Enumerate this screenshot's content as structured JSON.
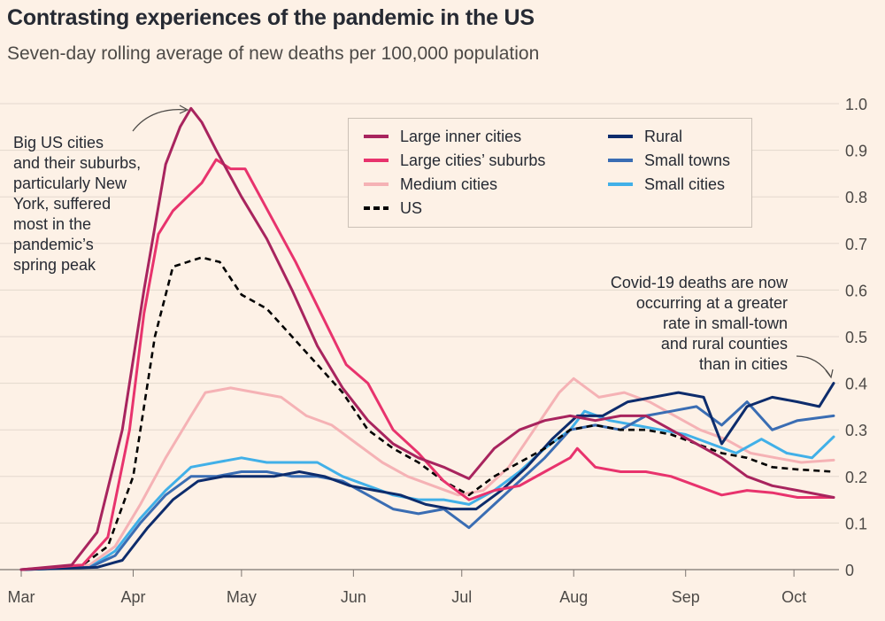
{
  "header": {
    "title": "Contrasting experiences of the pandemic in the US",
    "subtitle": "Seven-day rolling average of new deaths per 100,000 population"
  },
  "annotations": {
    "left": [
      "Big US cities",
      "and their suburbs,",
      "particularly New",
      "York, suffered",
      "most in the",
      "pandemic’s",
      "spring peak"
    ],
    "right": [
      "Covid-19 deaths are now",
      "occurring at a greater",
      "rate in small-town",
      "and rural counties",
      "than in cities"
    ]
  },
  "colors": {
    "background": "#fdf1e6",
    "grid": "#e3d8cd",
    "Large inner cities": "#a8245e",
    "Large cities’ suburbs": "#e8336d",
    "Medium cities": "#f5b2b5",
    "US": "#000000",
    "Rural": "#0d2c6c",
    "Small towns": "#3a6db3",
    "Small cities": "#41b0e8"
  },
  "chart_data": {
    "type": "line",
    "xlabel": "",
    "ylabel": "",
    "xlim": [
      "2020-03-01",
      "2020-10-12"
    ],
    "ylim": [
      0,
      1.0
    ],
    "x_ticks": [
      "Mar",
      "Apr",
      "May",
      "Jun",
      "Jul",
      "Aug",
      "Sep",
      "Oct"
    ],
    "y_ticks": [
      "0",
      "0.1",
      "0.2",
      "0.3",
      "0.4",
      "0.5",
      "0.6",
      "0.7",
      "0.8",
      "0.9",
      "1.0"
    ],
    "y_axis_side": "right",
    "grid": true,
    "legend_placement": "top-center",
    "series": [
      {
        "name": "Large inner cities",
        "style": "solid",
        "points": [
          [
            "2020-03-01",
            0
          ],
          [
            "2020-03-15",
            0.01
          ],
          [
            "2020-03-22",
            0.08
          ],
          [
            "2020-03-29",
            0.3
          ],
          [
            "2020-04-04",
            0.6
          ],
          [
            "2020-04-10",
            0.87
          ],
          [
            "2020-04-14",
            0.95
          ],
          [
            "2020-04-17",
            0.99
          ],
          [
            "2020-04-20",
            0.96
          ],
          [
            "2020-04-24",
            0.9
          ],
          [
            "2020-05-01",
            0.8
          ],
          [
            "2020-05-08",
            0.71
          ],
          [
            "2020-05-15",
            0.6
          ],
          [
            "2020-05-22",
            0.48
          ],
          [
            "2020-05-29",
            0.39
          ],
          [
            "2020-06-05",
            0.32
          ],
          [
            "2020-06-12",
            0.27
          ],
          [
            "2020-06-19",
            0.24
          ],
          [
            "2020-06-26",
            0.22
          ],
          [
            "2020-07-03",
            0.195
          ],
          [
            "2020-07-10",
            0.26
          ],
          [
            "2020-07-17",
            0.3
          ],
          [
            "2020-07-24",
            0.32
          ],
          [
            "2020-07-31",
            0.33
          ],
          [
            "2020-08-07",
            0.32
          ],
          [
            "2020-08-14",
            0.33
          ],
          [
            "2020-08-21",
            0.33
          ],
          [
            "2020-08-28",
            0.3
          ],
          [
            "2020-09-04",
            0.27
          ],
          [
            "2020-09-11",
            0.24
          ],
          [
            "2020-09-18",
            0.2
          ],
          [
            "2020-09-25",
            0.18
          ],
          [
            "2020-10-02",
            0.17
          ],
          [
            "2020-10-12",
            0.155
          ]
        ]
      },
      {
        "name": "Large cities’ suburbs",
        "style": "solid",
        "points": [
          [
            "2020-03-01",
            0
          ],
          [
            "2020-03-18",
            0.01
          ],
          [
            "2020-03-25",
            0.07
          ],
          [
            "2020-03-31",
            0.3
          ],
          [
            "2020-04-04",
            0.55
          ],
          [
            "2020-04-08",
            0.72
          ],
          [
            "2020-04-12",
            0.77
          ],
          [
            "2020-04-16",
            0.8
          ],
          [
            "2020-04-20",
            0.83
          ],
          [
            "2020-04-24",
            0.88
          ],
          [
            "2020-04-28",
            0.86
          ],
          [
            "2020-05-02",
            0.86
          ],
          [
            "2020-05-09",
            0.76
          ],
          [
            "2020-05-16",
            0.66
          ],
          [
            "2020-05-23",
            0.55
          ],
          [
            "2020-05-30",
            0.44
          ],
          [
            "2020-06-05",
            0.4
          ],
          [
            "2020-06-12",
            0.3
          ],
          [
            "2020-06-19",
            0.25
          ],
          [
            "2020-06-26",
            0.19
          ],
          [
            "2020-07-03",
            0.15
          ],
          [
            "2020-07-10",
            0.17
          ],
          [
            "2020-07-17",
            0.18
          ],
          [
            "2020-07-24",
            0.21
          ],
          [
            "2020-07-31",
            0.24
          ],
          [
            "2020-08-02",
            0.26
          ],
          [
            "2020-08-07",
            0.22
          ],
          [
            "2020-08-14",
            0.21
          ],
          [
            "2020-08-21",
            0.21
          ],
          [
            "2020-08-28",
            0.2
          ],
          [
            "2020-09-04",
            0.18
          ],
          [
            "2020-09-11",
            0.16
          ],
          [
            "2020-09-18",
            0.17
          ],
          [
            "2020-09-25",
            0.165
          ],
          [
            "2020-10-02",
            0.155
          ],
          [
            "2020-10-12",
            0.155
          ]
        ]
      },
      {
        "name": "Medium cities",
        "style": "solid",
        "points": [
          [
            "2020-03-01",
            0
          ],
          [
            "2020-03-20",
            0.01
          ],
          [
            "2020-03-27",
            0.05
          ],
          [
            "2020-04-03",
            0.14
          ],
          [
            "2020-04-10",
            0.24
          ],
          [
            "2020-04-17",
            0.33
          ],
          [
            "2020-04-21",
            0.38
          ],
          [
            "2020-04-28",
            0.39
          ],
          [
            "2020-05-05",
            0.38
          ],
          [
            "2020-05-12",
            0.37
          ],
          [
            "2020-05-19",
            0.33
          ],
          [
            "2020-05-26",
            0.31
          ],
          [
            "2020-06-02",
            0.27
          ],
          [
            "2020-06-09",
            0.23
          ],
          [
            "2020-06-16",
            0.2
          ],
          [
            "2020-06-23",
            0.18
          ],
          [
            "2020-06-30",
            0.16
          ],
          [
            "2020-07-07",
            0.17
          ],
          [
            "2020-07-14",
            0.22
          ],
          [
            "2020-07-21",
            0.3
          ],
          [
            "2020-07-28",
            0.38
          ],
          [
            "2020-08-01",
            0.41
          ],
          [
            "2020-08-08",
            0.37
          ],
          [
            "2020-08-15",
            0.38
          ],
          [
            "2020-08-22",
            0.36
          ],
          [
            "2020-08-29",
            0.33
          ],
          [
            "2020-09-05",
            0.3
          ],
          [
            "2020-09-12",
            0.28
          ],
          [
            "2020-09-19",
            0.25
          ],
          [
            "2020-09-26",
            0.24
          ],
          [
            "2020-10-03",
            0.23
          ],
          [
            "2020-10-12",
            0.235
          ]
        ]
      },
      {
        "name": "US",
        "style": "dashed",
        "points": [
          [
            "2020-03-01",
            0
          ],
          [
            "2020-03-18",
            0.01
          ],
          [
            "2020-03-25",
            0.05
          ],
          [
            "2020-04-01",
            0.2
          ],
          [
            "2020-04-07",
            0.5
          ],
          [
            "2020-04-12",
            0.65
          ],
          [
            "2020-04-16",
            0.66
          ],
          [
            "2020-04-20",
            0.67
          ],
          [
            "2020-04-25",
            0.66
          ],
          [
            "2020-05-01",
            0.59
          ],
          [
            "2020-05-08",
            0.56
          ],
          [
            "2020-05-15",
            0.5
          ],
          [
            "2020-05-22",
            0.44
          ],
          [
            "2020-05-29",
            0.38
          ],
          [
            "2020-06-05",
            0.3
          ],
          [
            "2020-06-12",
            0.26
          ],
          [
            "2020-06-19",
            0.23
          ],
          [
            "2020-06-26",
            0.19
          ],
          [
            "2020-07-03",
            0.16
          ],
          [
            "2020-07-10",
            0.2
          ],
          [
            "2020-07-17",
            0.23
          ],
          [
            "2020-07-24",
            0.26
          ],
          [
            "2020-07-31",
            0.3
          ],
          [
            "2020-08-07",
            0.31
          ],
          [
            "2020-08-14",
            0.3
          ],
          [
            "2020-08-21",
            0.3
          ],
          [
            "2020-08-28",
            0.29
          ],
          [
            "2020-09-04",
            0.27
          ],
          [
            "2020-09-11",
            0.25
          ],
          [
            "2020-09-18",
            0.24
          ],
          [
            "2020-09-25",
            0.22
          ],
          [
            "2020-10-02",
            0.215
          ],
          [
            "2020-10-12",
            0.21
          ]
        ]
      },
      {
        "name": "Rural",
        "style": "solid",
        "points": [
          [
            "2020-03-01",
            0
          ],
          [
            "2020-03-22",
            0.005
          ],
          [
            "2020-03-29",
            0.02
          ],
          [
            "2020-04-05",
            0.09
          ],
          [
            "2020-04-12",
            0.15
          ],
          [
            "2020-04-19",
            0.19
          ],
          [
            "2020-04-26",
            0.2
          ],
          [
            "2020-05-03",
            0.2
          ],
          [
            "2020-05-10",
            0.2
          ],
          [
            "2020-05-17",
            0.21
          ],
          [
            "2020-05-24",
            0.2
          ],
          [
            "2020-05-31",
            0.18
          ],
          [
            "2020-06-07",
            0.17
          ],
          [
            "2020-06-14",
            0.16
          ],
          [
            "2020-06-21",
            0.14
          ],
          [
            "2020-06-28",
            0.13
          ],
          [
            "2020-07-05",
            0.13
          ],
          [
            "2020-07-12",
            0.17
          ],
          [
            "2020-07-19",
            0.22
          ],
          [
            "2020-07-26",
            0.28
          ],
          [
            "2020-08-02",
            0.33
          ],
          [
            "2020-08-09",
            0.33
          ],
          [
            "2020-08-16",
            0.36
          ],
          [
            "2020-08-23",
            0.37
          ],
          [
            "2020-08-30",
            0.38
          ],
          [
            "2020-09-06",
            0.37
          ],
          [
            "2020-09-11",
            0.27
          ],
          [
            "2020-09-18",
            0.35
          ],
          [
            "2020-09-25",
            0.37
          ],
          [
            "2020-10-02",
            0.36
          ],
          [
            "2020-10-08",
            0.35
          ],
          [
            "2020-10-12",
            0.4
          ]
        ]
      },
      {
        "name": "Small towns",
        "style": "solid",
        "points": [
          [
            "2020-03-01",
            0
          ],
          [
            "2020-03-20",
            0.005
          ],
          [
            "2020-03-27",
            0.03
          ],
          [
            "2020-04-03",
            0.1
          ],
          [
            "2020-04-10",
            0.16
          ],
          [
            "2020-04-17",
            0.2
          ],
          [
            "2020-04-24",
            0.2
          ],
          [
            "2020-05-01",
            0.21
          ],
          [
            "2020-05-08",
            0.21
          ],
          [
            "2020-05-15",
            0.2
          ],
          [
            "2020-05-22",
            0.2
          ],
          [
            "2020-05-29",
            0.19
          ],
          [
            "2020-06-05",
            0.16
          ],
          [
            "2020-06-12",
            0.13
          ],
          [
            "2020-06-19",
            0.12
          ],
          [
            "2020-06-26",
            0.13
          ],
          [
            "2020-07-03",
            0.09
          ],
          [
            "2020-07-10",
            0.14
          ],
          [
            "2020-07-17",
            0.19
          ],
          [
            "2020-07-24",
            0.24
          ],
          [
            "2020-07-31",
            0.3
          ],
          [
            "2020-08-07",
            0.31
          ],
          [
            "2020-08-14",
            0.3
          ],
          [
            "2020-08-21",
            0.33
          ],
          [
            "2020-08-28",
            0.34
          ],
          [
            "2020-09-04",
            0.35
          ],
          [
            "2020-09-11",
            0.31
          ],
          [
            "2020-09-18",
            0.36
          ],
          [
            "2020-09-25",
            0.3
          ],
          [
            "2020-10-02",
            0.32
          ],
          [
            "2020-10-12",
            0.33
          ]
        ]
      },
      {
        "name": "Small cities",
        "style": "solid",
        "points": [
          [
            "2020-03-01",
            0
          ],
          [
            "2020-03-20",
            0.005
          ],
          [
            "2020-03-27",
            0.04
          ],
          [
            "2020-04-03",
            0.11
          ],
          [
            "2020-04-10",
            0.17
          ],
          [
            "2020-04-17",
            0.22
          ],
          [
            "2020-04-24",
            0.23
          ],
          [
            "2020-05-01",
            0.24
          ],
          [
            "2020-05-08",
            0.23
          ],
          [
            "2020-05-15",
            0.23
          ],
          [
            "2020-05-22",
            0.23
          ],
          [
            "2020-05-29",
            0.2
          ],
          [
            "2020-06-05",
            0.18
          ],
          [
            "2020-06-12",
            0.16
          ],
          [
            "2020-06-19",
            0.15
          ],
          [
            "2020-06-26",
            0.15
          ],
          [
            "2020-07-03",
            0.14
          ],
          [
            "2020-07-10",
            0.17
          ],
          [
            "2020-07-17",
            0.21
          ],
          [
            "2020-07-24",
            0.26
          ],
          [
            "2020-07-31",
            0.3
          ],
          [
            "2020-08-04",
            0.34
          ],
          [
            "2020-08-11",
            0.32
          ],
          [
            "2020-08-18",
            0.31
          ],
          [
            "2020-08-25",
            0.3
          ],
          [
            "2020-09-01",
            0.29
          ],
          [
            "2020-09-08",
            0.27
          ],
          [
            "2020-09-15",
            0.25
          ],
          [
            "2020-09-22",
            0.28
          ],
          [
            "2020-09-29",
            0.25
          ],
          [
            "2020-10-06",
            0.24
          ],
          [
            "2020-10-12",
            0.285
          ]
        ]
      }
    ]
  },
  "legend_layout": [
    [
      "Large inner cities",
      "Rural"
    ],
    [
      "Large cities’ suburbs",
      "Small towns"
    ],
    [
      "Medium cities",
      "Small cities"
    ],
    [
      "US"
    ]
  ]
}
